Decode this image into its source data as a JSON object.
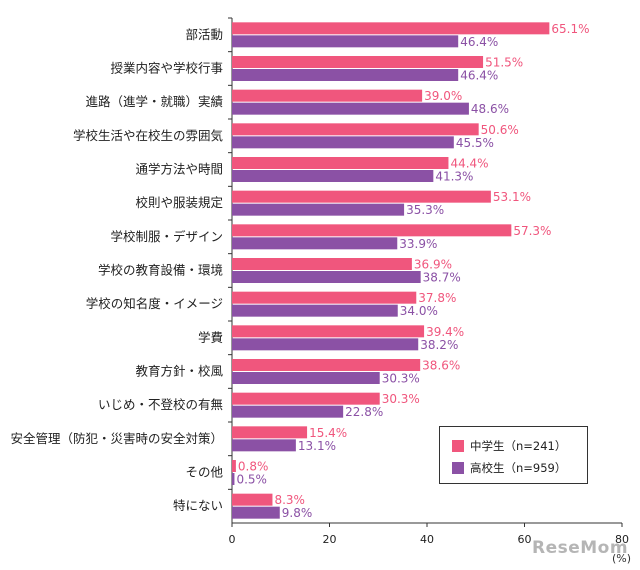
{
  "colors": {
    "middle": "#f0567d",
    "high": "#8b51a5",
    "middle_label": "#f0567d",
    "high_label": "#8b51a5"
  },
  "chart_data": {
    "type": "bar",
    "orientation": "horizontal",
    "categories": [
      "部活動",
      "授業内容や学校行事",
      "進路（進学・就職）実績",
      "学校生活や在校生の雰囲気",
      "通学方法や時間",
      "校則や服装規定",
      "学校制服・デザイン",
      "学校の教育設備・環境",
      "学校の知名度・イメージ",
      "学費",
      "教育方針・校風",
      "いじめ・不登校の有無",
      "安全管理（防犯・災害時の安全対策）",
      "その他",
      "特にない"
    ],
    "series": [
      {
        "name": "中学生（n=241）",
        "values": [
          65.1,
          51.5,
          39.0,
          50.6,
          44.4,
          53.1,
          57.3,
          36.9,
          37.8,
          39.4,
          38.6,
          30.3,
          15.4,
          0.8,
          8.3
        ],
        "labels": [
          "65.1%",
          "51.5%",
          "39.0%",
          "50.6%",
          "44.4%",
          "53.1%",
          "57.3%",
          "36.9%",
          "37.8%",
          "39.4%",
          "38.6%",
          "30.3%",
          "15.4%",
          "0.8%",
          "8.3%"
        ]
      },
      {
        "name": "高校生（n=959）",
        "values": [
          46.4,
          46.4,
          48.6,
          45.5,
          41.3,
          35.3,
          33.9,
          38.7,
          34.0,
          38.2,
          30.3,
          22.8,
          13.1,
          0.5,
          9.8
        ],
        "labels": [
          "46.4%",
          "46.4%",
          "48.6%",
          "45.5%",
          "41.3%",
          "35.3%",
          "33.9%",
          "38.7%",
          "34.0%",
          "38.2%",
          "30.3%",
          "22.8%",
          "13.1%",
          "0.5%",
          "9.8%"
        ]
      }
    ],
    "xlim": [
      0,
      80
    ],
    "xticks": [
      "0",
      "20",
      "40",
      "60",
      "80"
    ],
    "unit": "(%)",
    "legend_position": "bottom-right",
    "grid": false
  },
  "watermark": "ReseMom"
}
